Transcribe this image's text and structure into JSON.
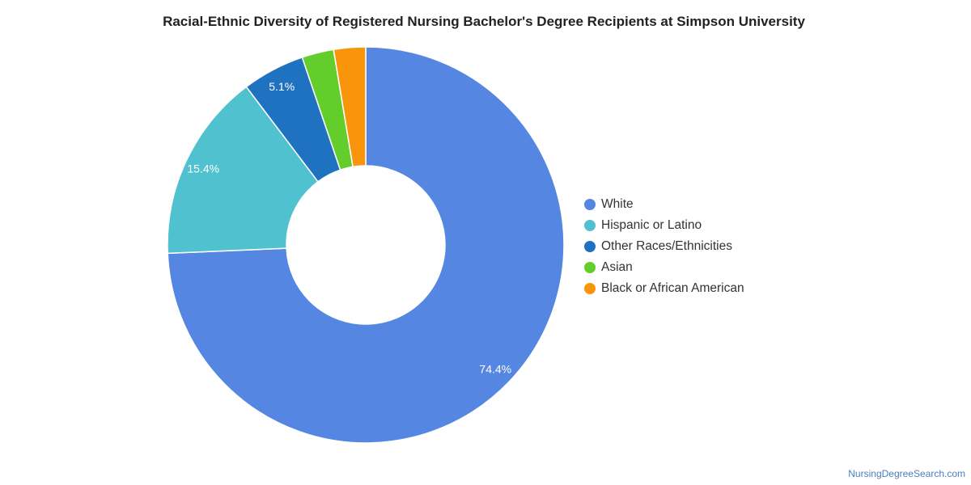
{
  "chart_data": {
    "type": "pie",
    "style": "donut",
    "title": "Racial-Ethnic Diversity of Registered Nursing Bachelor's Degree Recipients at Simpson University",
    "legend_position": "right",
    "categories": [
      "White",
      "Hispanic or Latino",
      "Other Races/Ethnicities",
      "Asian",
      "Black or African American"
    ],
    "values": [
      74.4,
      15.4,
      5.1,
      2.6,
      2.6
    ],
    "data_labels": [
      "74.4%",
      "15.4%",
      "5.1%",
      "",
      ""
    ],
    "colors": [
      "#5486e2",
      "#50c1ce",
      "#1f72bf",
      "#63cd2b",
      "#f8950a"
    ]
  },
  "legend": {
    "items": [
      {
        "label": "White",
        "color": "#5486e2"
      },
      {
        "label": "Hispanic or Latino",
        "color": "#50c1ce"
      },
      {
        "label": "Other Races/Ethnicities",
        "color": "#1f72bf"
      },
      {
        "label": "Asian",
        "color": "#63cd2b"
      },
      {
        "label": "Black or African American",
        "color": "#f8950a"
      }
    ]
  },
  "watermark": {
    "text": "NursingDegreeSearch.com"
  }
}
